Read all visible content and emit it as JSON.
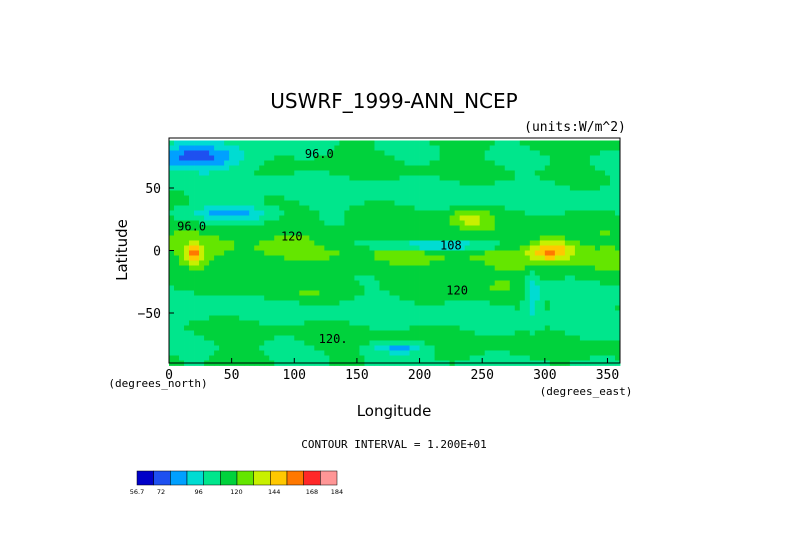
{
  "chart_data": {
    "type": "heatmap",
    "title": "USWRF_1999-ANN_NCEP",
    "units_label": "(units:W/m^2)",
    "xlabel": "Longitude",
    "ylabel": "Latitude",
    "x_units_label": "(degrees_east)",
    "y_units_label": "(degrees_north)",
    "xlim": [
      0,
      360
    ],
    "ylim": [
      -90,
      90
    ],
    "x_ticks": [
      0,
      50,
      100,
      150,
      200,
      250,
      300,
      350
    ],
    "y_ticks": [
      50,
      0,
      -50
    ],
    "x_tick_labels": [
      "0",
      "50",
      "100",
      "150",
      "200",
      "250",
      "300",
      "350"
    ],
    "y_tick_labels": [
      "50",
      "0",
      "−50"
    ],
    "contour_interval_text": "CONTOUR INTERVAL = 1.200E+01",
    "contour_labels": [
      {
        "text": "96.0",
        "lon": 120,
        "lat": 74
      },
      {
        "text": "96.0",
        "lon": 18,
        "lat": 16
      },
      {
        "text": "120",
        "lon": 98,
        "lat": 8
      },
      {
        "text": "120",
        "lon": 230,
        "lat": -35
      },
      {
        "text": "108",
        "lon": 225,
        "lat": 1
      },
      {
        "text": "120.",
        "lon": 131,
        "lat": -74
      }
    ],
    "colorbar": {
      "tick_labels": [
        "56.7",
        "72",
        "96",
        "120",
        "144",
        "168",
        "184"
      ],
      "tick_values": [
        56.7,
        72,
        96,
        120,
        144,
        168,
        184
      ],
      "colors": [
        "#0000c8",
        "#1e50f0",
        "#00a0ff",
        "#00dcd2",
        "#00e68c",
        "#00d23c",
        "#64e600",
        "#c8f000",
        "#ffc800",
        "#ff7800",
        "#ff2828",
        "#ff9696"
      ]
    }
  }
}
